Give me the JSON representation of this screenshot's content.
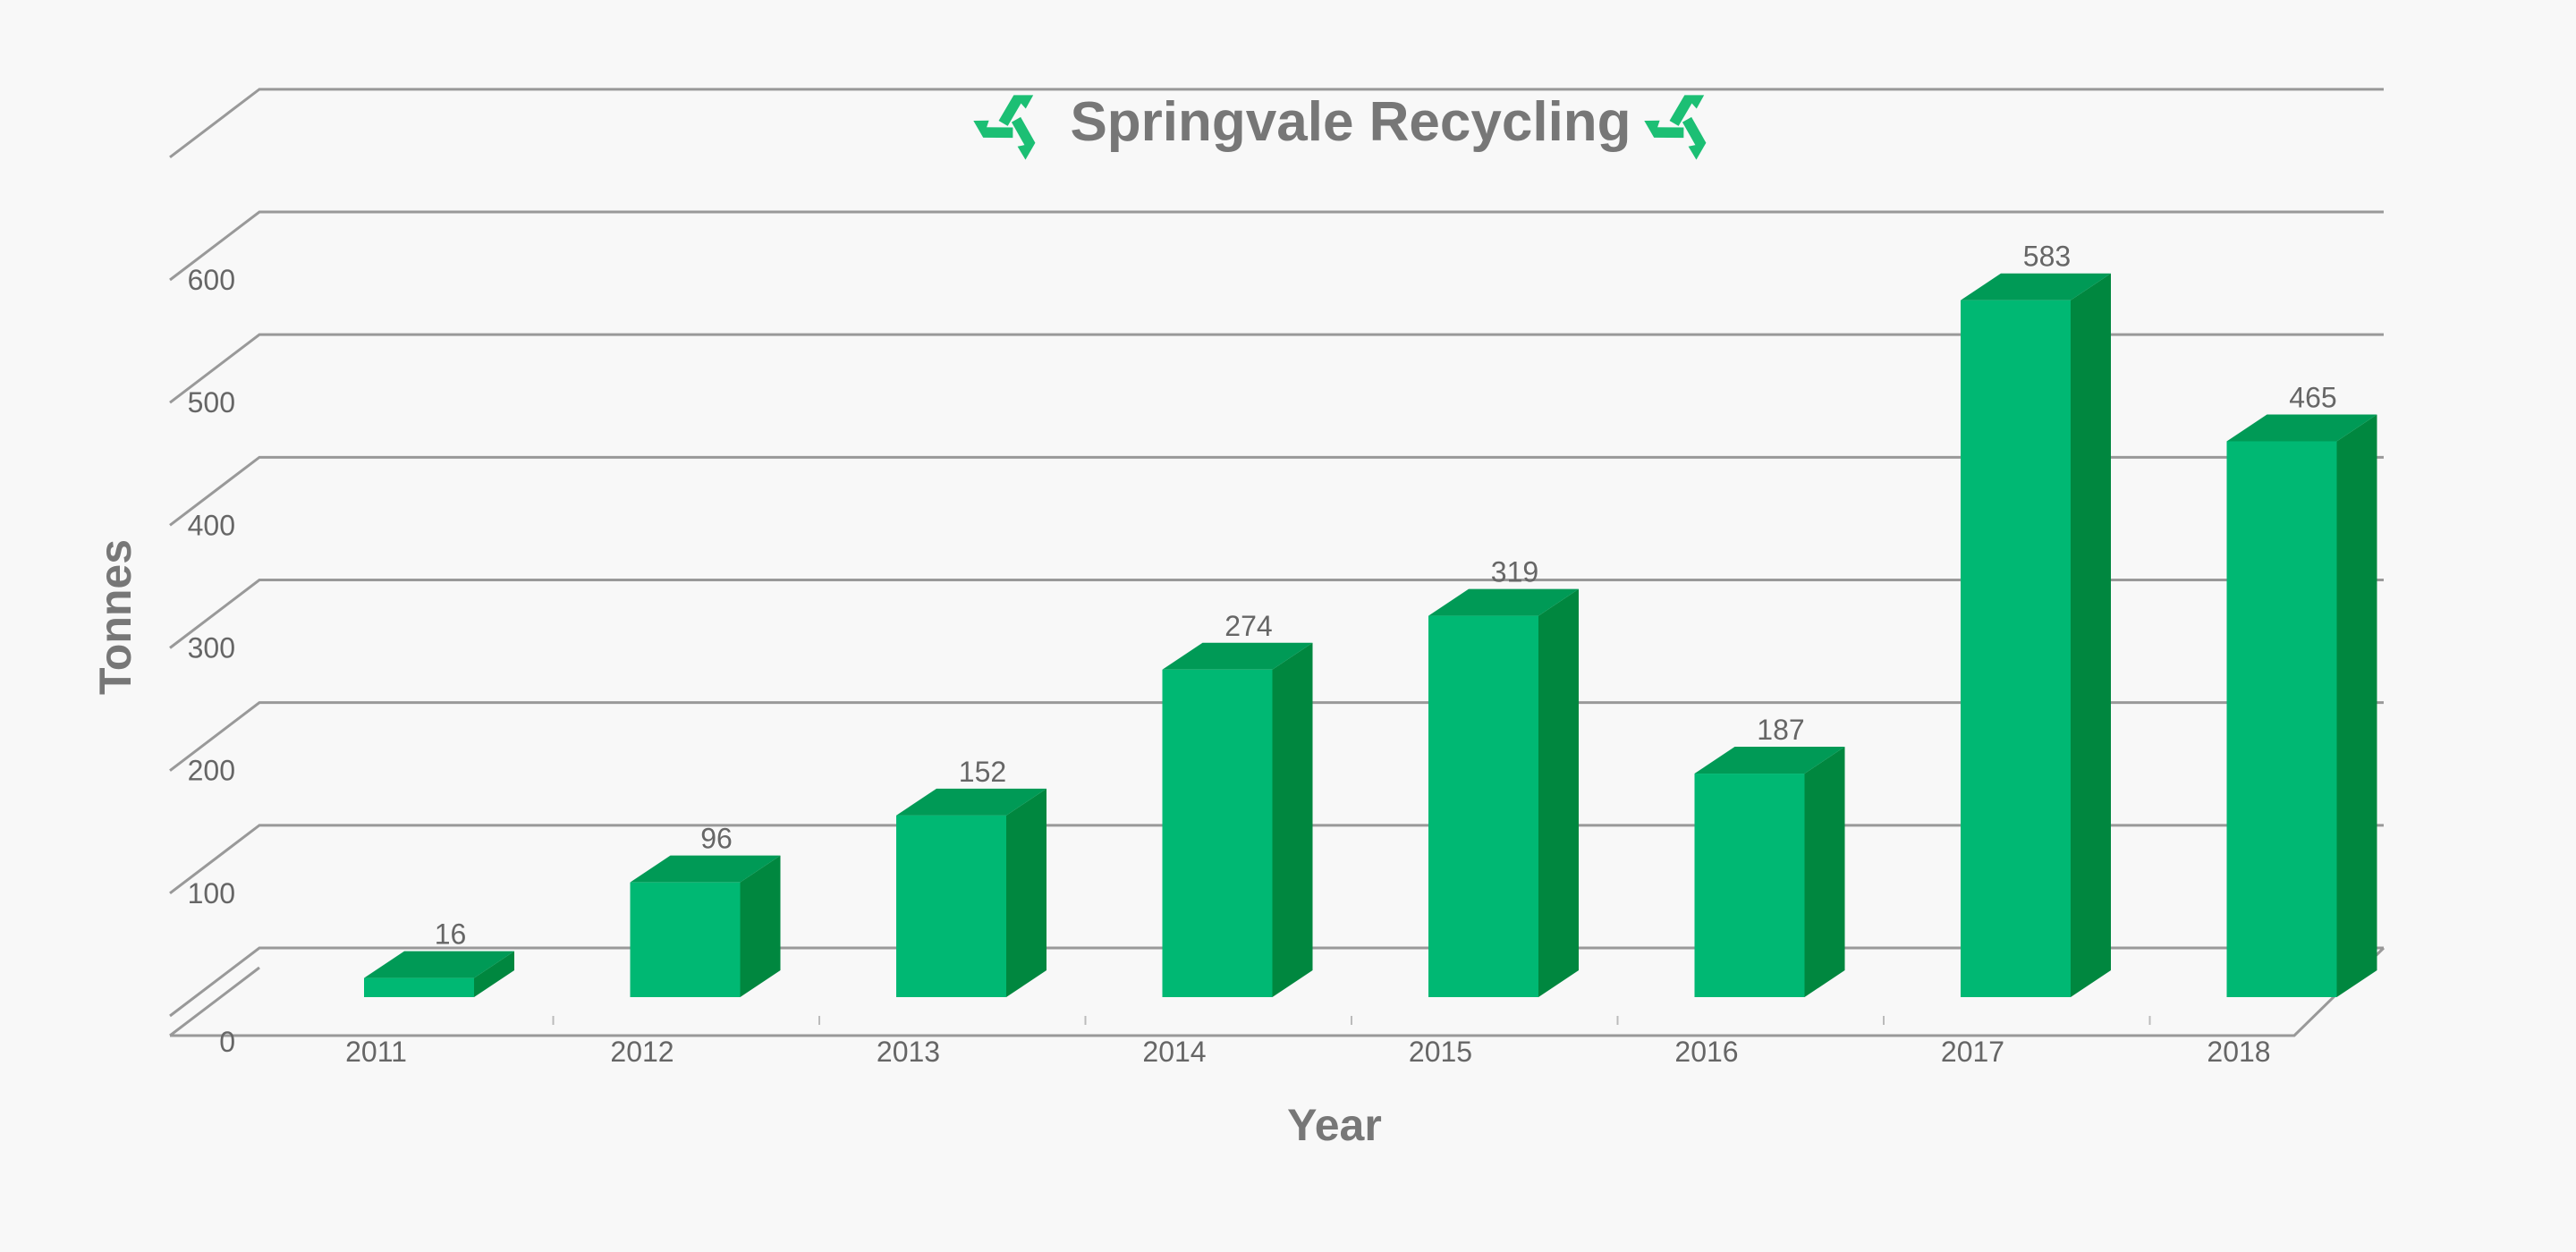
{
  "chart_data": {
    "type": "bar",
    "title": "Springvale Recycling",
    "title_icon": "recycle-icon",
    "categories": [
      "2011",
      "2012",
      "2013",
      "2014",
      "2015",
      "2016",
      "2017",
      "2018"
    ],
    "values": [
      16,
      96,
      152,
      274,
      319,
      187,
      583,
      465
    ],
    "xlabel": "Year",
    "ylabel": "Tonnes",
    "ylim": [
      0,
      600
    ],
    "y_ticks": [
      "0",
      "100",
      "200",
      "300",
      "400",
      "500",
      "600"
    ],
    "grid": true,
    "legend": "none",
    "style": "3d-column",
    "colors": {
      "bar_front": "#00b873",
      "bar_side": "#00873f",
      "bar_top": "#009a56",
      "icon": "#1cbf74",
      "grid": "#999999",
      "text": "#777777",
      "background": "#f8f8f8"
    }
  }
}
